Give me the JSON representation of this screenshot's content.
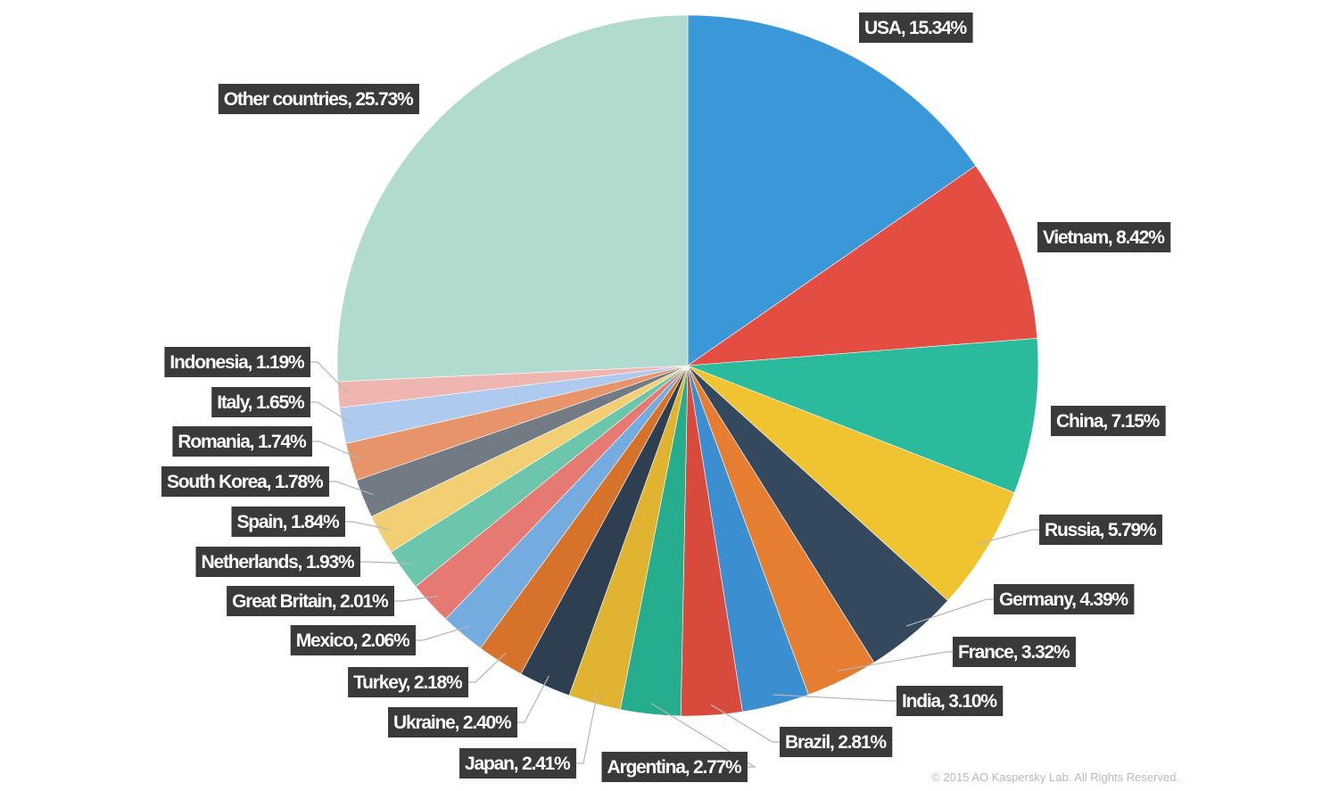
{
  "chart_data": {
    "type": "pie",
    "slices": [
      {
        "label": "USA",
        "value": 15.34,
        "text": "USA, 15.34%",
        "color": "#3a98d8"
      },
      {
        "label": "Vietnam",
        "value": 8.42,
        "text": "Vietnam, 8.42%",
        "color": "#e34d42"
      },
      {
        "label": "China",
        "value": 7.15,
        "text": "China, 7.15%",
        "color": "#29bb9c"
      },
      {
        "label": "Russia",
        "value": 5.79,
        "text": "Russia, 5.79%",
        "color": "#f0c331"
      },
      {
        "label": "Germany",
        "value": 4.39,
        "text": "Germany, 4.39%",
        "color": "#34495e"
      },
      {
        "label": "France",
        "value": 3.32,
        "text": "France, 3.32%",
        "color": "#e67e31"
      },
      {
        "label": "India",
        "value": 3.1,
        "text": "India, 3.10%",
        "color": "#3b8fd1"
      },
      {
        "label": "Brazil",
        "value": 2.81,
        "text": "Brazil, 2.81%",
        "color": "#d84a3c"
      },
      {
        "label": "Argentina",
        "value": 2.77,
        "text": "Argentina, 2.77%",
        "color": "#25ad8e"
      },
      {
        "label": "Japan",
        "value": 2.41,
        "text": "Japan, 2.41%",
        "color": "#e0b430"
      },
      {
        "label": "Ukraine",
        "value": 2.4,
        "text": "Ukraine, 2.40%",
        "color": "#2f3f52"
      },
      {
        "label": "Turkey",
        "value": 2.18,
        "text": "Turkey, 2.18%",
        "color": "#d6722a"
      },
      {
        "label": "Mexico",
        "value": 2.06,
        "text": "Mexico, 2.06%",
        "color": "#75acdf"
      },
      {
        "label": "Great Britain",
        "value": 2.01,
        "text": "Great Britain, 2.01%",
        "color": "#e67a72"
      },
      {
        "label": "Netherlands",
        "value": 1.93,
        "text": "Netherlands, 1.93%",
        "color": "#6cc6ab"
      },
      {
        "label": "Spain",
        "value": 1.84,
        "text": "Spain, 1.84%",
        "color": "#f1cf72"
      },
      {
        "label": "South Korea",
        "value": 1.78,
        "text": "South Korea, 1.78%",
        "color": "#727b84"
      },
      {
        "label": "Romania",
        "value": 1.74,
        "text": "Romania, 1.74%",
        "color": "#e8946a"
      },
      {
        "label": "Italy",
        "value": 1.65,
        "text": "Italy, 1.65%",
        "color": "#aecbef"
      },
      {
        "label": "Indonesia",
        "value": 1.19,
        "text": "Indonesia, 1.19%",
        "color": "#efb5b1"
      },
      {
        "label": "Other countries",
        "value": 25.73,
        "text": "Other countries, 25.73%",
        "color": "#b2dbd0"
      }
    ],
    "start_angle": "12 o'clock",
    "direction": "clockwise"
  },
  "footer": {
    "copyright": "© 2015 AO Kaspersky Lab. All Rights Reserved."
  }
}
